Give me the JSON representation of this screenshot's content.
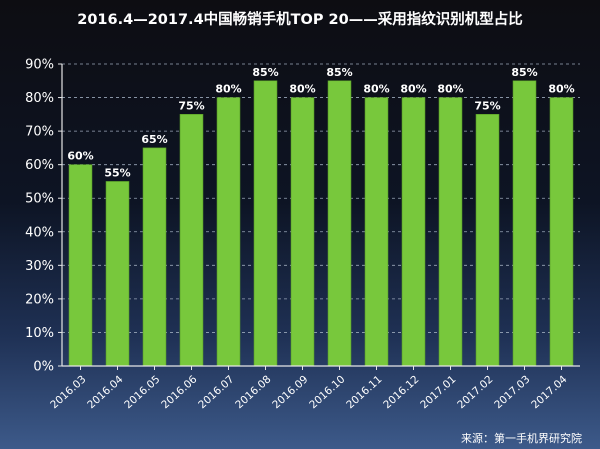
{
  "chart_data": {
    "type": "bar",
    "title": "2016.4—2017.4中国畅销手机TOP 20——采用指纹识别机型占比",
    "categories": [
      "2016.03",
      "2016.04",
      "2016.05",
      "2016.06",
      "2016.07",
      "2016.08",
      "2016.09",
      "2016.10",
      "2016.11",
      "2016.12",
      "2017.01",
      "2017.02",
      "2017.03",
      "2017.04"
    ],
    "values": [
      60,
      55,
      65,
      75,
      80,
      85,
      80,
      85,
      80,
      80,
      80,
      75,
      85,
      80
    ],
    "data_labels": [
      "60%",
      "55%",
      "65%",
      "75%",
      "80%",
      "85%",
      "80%",
      "85%",
      "80%",
      "80%",
      "80%",
      "75%",
      "85%",
      "80%"
    ],
    "y_ticks": [
      0,
      10,
      20,
      30,
      40,
      50,
      60,
      70,
      80,
      90
    ],
    "y_tick_labels": [
      "0%",
      "10%",
      "20%",
      "30%",
      "40%",
      "50%",
      "60%",
      "70%",
      "80%",
      "90%"
    ],
    "ylim": [
      0,
      90
    ],
    "xlabel": "",
    "ylabel": "",
    "grid": true,
    "legend": "none",
    "source": "来源：第一手机界研究院",
    "colors": {
      "bar": "#78c83c",
      "bar_edge": "#5aa028",
      "text": "#ffffff",
      "grid": "#9aa6b8",
      "axis": "#e6e6e6"
    }
  }
}
